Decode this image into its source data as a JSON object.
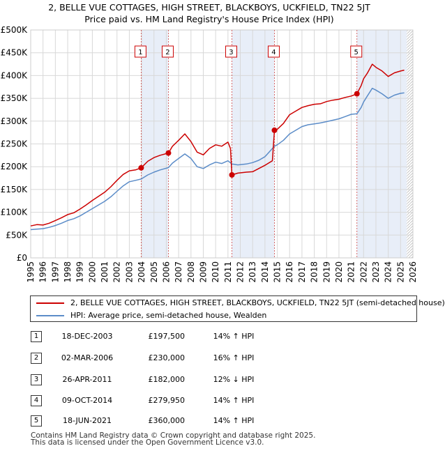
{
  "title": {
    "line1": "2, BELLE VUE COTTAGES, HIGH STREET, BLACKBOYS, UCKFIELD, TN22 5JT",
    "line2": "Price paid vs. HM Land Registry's House Price Index (HPI)"
  },
  "colors": {
    "price": "#cc0000",
    "hpi": "#5b8cc8",
    "shade": "#e8eef8",
    "grid": "#d8d8d8",
    "vline": "#cc4444"
  },
  "legend": {
    "price_label": "2, BELLE VUE COTTAGES, HIGH STREET, BLACKBOYS, UCKFIELD, TN22 5JT (semi-detached house)",
    "hpi_label": "HPI: Average price, semi-detached house, Wealden"
  },
  "sales": [
    {
      "num": "1",
      "date": "18-DEC-2003",
      "price": "£197,500",
      "hpi": "14% ↑ HPI"
    },
    {
      "num": "2",
      "date": "02-MAR-2006",
      "price": "£230,000",
      "hpi": "16% ↑ HPI"
    },
    {
      "num": "3",
      "date": "26-APR-2011",
      "price": "£182,000",
      "hpi": "12% ↓ HPI"
    },
    {
      "num": "4",
      "date": "09-OCT-2014",
      "price": "£279,950",
      "hpi": "14% ↑ HPI"
    },
    {
      "num": "5",
      "date": "18-JUN-2021",
      "price": "£360,000",
      "hpi": "14% ↑ HPI"
    }
  ],
  "footer": {
    "line1": "Contains HM Land Registry data © Crown copyright and database right 2025.",
    "line2": "This data is licensed under the Open Government Licence v3.0."
  },
  "chart_data": {
    "type": "line",
    "title": "2, BELLE VUE COTTAGES, HIGH STREET, BLACKBOYS, UCKFIELD, TN22 5JT — Price paid vs. HM Land Registry's House Price Index (HPI)",
    "xlabel": "",
    "ylabel": "",
    "xlim": [
      1995,
      2026
    ],
    "ylim": [
      0,
      500000
    ],
    "x_ticks": [
      1995,
      1996,
      1997,
      1998,
      1999,
      2000,
      2001,
      2002,
      2003,
      2004,
      2005,
      2006,
      2007,
      2008,
      2009,
      2010,
      2011,
      2012,
      2013,
      2014,
      2015,
      2016,
      2017,
      2018,
      2019,
      2020,
      2021,
      2022,
      2023,
      2024,
      2025,
      2026
    ],
    "y_ticks": [
      {
        "value": 0,
        "label": "£0"
      },
      {
        "value": 50000,
        "label": "£50K"
      },
      {
        "value": 100000,
        "label": "£100K"
      },
      {
        "value": 150000,
        "label": "£150K"
      },
      {
        "value": 200000,
        "label": "£200K"
      },
      {
        "value": 250000,
        "label": "£250K"
      },
      {
        "value": 300000,
        "label": "£300K"
      },
      {
        "value": 350000,
        "label": "£350K"
      },
      {
        "value": 400000,
        "label": "£400K"
      },
      {
        "value": 450000,
        "label": "£450K"
      },
      {
        "value": 500000,
        "label": "£500K"
      }
    ],
    "grid": true,
    "shaded_ranges": [
      [
        2003.96,
        2006.17
      ],
      [
        2011.32,
        2014.77
      ],
      [
        2021.46,
        2025.5
      ]
    ],
    "hatched_range": [
      2025.5,
      2026
    ],
    "series": [
      {
        "name": "2, BELLE VUE COTTAGES, HIGH STREET, BLACKBOYS, UCKFIELD, TN22 5JT (semi-detached house)",
        "color": "#cc0000",
        "x": [
          1995.0,
          1995.5,
          1996.0,
          1996.5,
          1997.0,
          1997.5,
          1998.0,
          1998.5,
          1999.0,
          1999.5,
          2000.0,
          2000.5,
          2001.0,
          2001.5,
          2002.0,
          2002.5,
          2003.0,
          2003.5,
          2003.96,
          2004.5,
          2005.0,
          2005.5,
          2006.17,
          2006.5,
          2007.0,
          2007.5,
          2008.0,
          2008.5,
          2009.0,
          2009.5,
          2010.0,
          2010.5,
          2011.0,
          2011.2,
          2011.32,
          2011.8,
          2012.5,
          2013.0,
          2013.5,
          2014.0,
          2014.6,
          2014.77,
          2015.0,
          2015.5,
          2016.0,
          2016.5,
          2017.0,
          2017.5,
          2018.0,
          2018.5,
          2019.0,
          2019.5,
          2020.0,
          2020.5,
          2021.0,
          2021.46,
          2021.8,
          2022.0,
          2022.3,
          2022.7,
          2023.0,
          2023.5,
          2024.0,
          2024.5,
          2025.0,
          2025.3
        ],
        "y": [
          70000,
          73000,
          72000,
          76000,
          82000,
          88000,
          95000,
          99000,
          107000,
          116000,
          126000,
          135000,
          144000,
          156000,
          170000,
          183000,
          191000,
          193000,
          197500,
          212000,
          220000,
          225000,
          230000,
          245000,
          258000,
          272000,
          255000,
          232000,
          226000,
          240000,
          248000,
          245000,
          254000,
          240000,
          182000,
          186000,
          188000,
          189000,
          196000,
          203000,
          213000,
          279950,
          282000,
          295000,
          314000,
          322000,
          330000,
          334000,
          337000,
          338000,
          343000,
          346000,
          348000,
          352000,
          355000,
          360000,
          378000,
          393000,
          405000,
          425000,
          418000,
          410000,
          398000,
          406000,
          410000,
          412000
        ]
      },
      {
        "name": "HPI: Average price, semi-detached house, Wealden",
        "color": "#5b8cc8",
        "x": [
          1995.0,
          1995.5,
          1996.0,
          1996.5,
          1997.0,
          1997.5,
          1998.0,
          1998.5,
          1999.0,
          1999.5,
          2000.0,
          2000.5,
          2001.0,
          2001.5,
          2002.0,
          2002.5,
          2003.0,
          2003.5,
          2003.96,
          2004.5,
          2005.0,
          2005.5,
          2006.17,
          2006.5,
          2007.0,
          2007.5,
          2008.0,
          2008.5,
          2009.0,
          2009.5,
          2010.0,
          2010.5,
          2011.0,
          2011.32,
          2011.8,
          2012.5,
          2013.0,
          2013.5,
          2014.0,
          2014.77,
          2015.0,
          2015.5,
          2016.0,
          2016.5,
          2017.0,
          2017.5,
          2018.0,
          2018.5,
          2019.0,
          2019.5,
          2020.0,
          2020.5,
          2021.0,
          2021.46,
          2021.8,
          2022.0,
          2022.3,
          2022.7,
          2023.0,
          2023.5,
          2024.0,
          2024.5,
          2025.0,
          2025.3
        ],
        "y": [
          62000,
          63000,
          64000,
          67000,
          71000,
          76000,
          82000,
          86000,
          92000,
          100000,
          108000,
          116000,
          124000,
          134000,
          146000,
          158000,
          167000,
          170000,
          173000,
          182000,
          188000,
          193000,
          198000,
          208000,
          218000,
          228000,
          218000,
          200000,
          196000,
          204000,
          210000,
          207000,
          213000,
          206000,
          204000,
          206000,
          209000,
          214000,
          222000,
          245000,
          248000,
          258000,
          272000,
          280000,
          288000,
          292000,
          294000,
          296000,
          299000,
          302000,
          305000,
          310000,
          315000,
          316000,
          330000,
          342000,
          355000,
          372000,
          368000,
          360000,
          350000,
          357000,
          361000,
          362000
        ]
      }
    ],
    "sale_markers": [
      {
        "label": "1",
        "x": 2003.96,
        "y": 197500
      },
      {
        "label": "2",
        "x": 2006.17,
        "y": 230000
      },
      {
        "label": "3",
        "x": 2011.32,
        "y": 182000
      },
      {
        "label": "4",
        "x": 2014.77,
        "y": 279950
      },
      {
        "label": "5",
        "x": 2021.46,
        "y": 360000
      }
    ]
  }
}
